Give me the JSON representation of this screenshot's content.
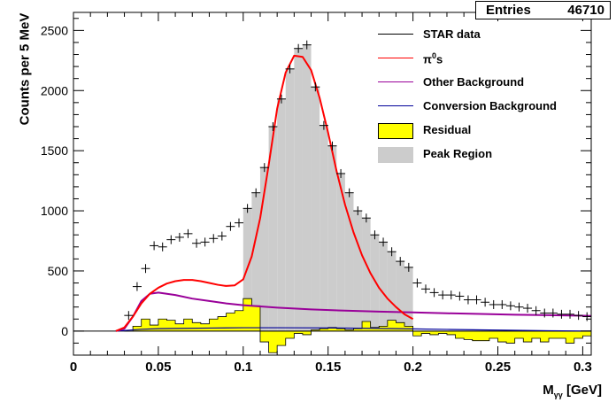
{
  "stats_box": {
    "label": "Entries",
    "value": "46710"
  },
  "axes": {
    "y_title": "Counts per 5 MeV",
    "x_title_main": "M",
    "x_title_sub": "γγ",
    "x_title_unit": " [GeV]",
    "x_ticks": [
      "0",
      "0.05",
      "0.1",
      "0.15",
      "0.2",
      "0.25",
      "0.3"
    ],
    "y_ticks": [
      "0",
      "500",
      "1000",
      "1500",
      "2000",
      "2500"
    ]
  },
  "legend": {
    "star_data": "STAR data",
    "pi0_main": "π",
    "pi0_sup": "0",
    "pi0_tail": "s",
    "other_bg": "Other Background",
    "conv_bg": "Conversion Background",
    "residual": "Residual",
    "peak_region": "Peak Region"
  },
  "colors": {
    "star_data": "#000000",
    "pi0": "#ff0000",
    "other_bg": "#990099",
    "conv_bg": "#000099",
    "residual": "#ffff00",
    "peak_region": "#cccccc"
  },
  "chart_data": {
    "type": "histogram",
    "xlim": [
      0,
      0.305
    ],
    "ylim": [
      -200,
      2650
    ],
    "bin_width": 0.005,
    "star_data": {
      "x": [
        0.0325,
        0.0375,
        0.0425,
        0.0475,
        0.0525,
        0.0575,
        0.0625,
        0.0675,
        0.0725,
        0.0775,
        0.0825,
        0.0875,
        0.0925,
        0.0975,
        0.1025,
        0.1075,
        0.1125,
        0.1175,
        0.1225,
        0.1275,
        0.1325,
        0.1375,
        0.1425,
        0.1475,
        0.1525,
        0.1575,
        0.1625,
        0.1675,
        0.1725,
        0.1775,
        0.1825,
        0.1875,
        0.1925,
        0.1975,
        0.2025,
        0.2075,
        0.2125,
        0.2175,
        0.2225,
        0.2275,
        0.2325,
        0.2375,
        0.2425,
        0.2475,
        0.2525,
        0.2575,
        0.2625,
        0.2675,
        0.2725,
        0.2775,
        0.2825,
        0.2875,
        0.2925,
        0.2975,
        0.3025
      ],
      "y": [
        130,
        370,
        520,
        710,
        700,
        760,
        780,
        810,
        730,
        740,
        770,
        790,
        870,
        900,
        1020,
        1150,
        1360,
        1700,
        1930,
        2180,
        2350,
        2380,
        2030,
        1710,
        1540,
        1310,
        1150,
        1000,
        940,
        800,
        740,
        660,
        580,
        530,
        400,
        350,
        320,
        300,
        300,
        290,
        260,
        260,
        240,
        220,
        220,
        210,
        200,
        190,
        170,
        150,
        150,
        140,
        140,
        130,
        120
      ]
    },
    "peak_region": {
      "x_range": [
        0.1,
        0.2
      ],
      "y": [
        1020,
        1150,
        1360,
        1700,
        1930,
        2180,
        2350,
        2380,
        2030,
        1710,
        1540,
        1310,
        1150,
        1000,
        940,
        800,
        740,
        660,
        580,
        530
      ]
    },
    "residual": {
      "x_start": 0.03,
      "y": [
        0,
        40,
        100,
        50,
        100,
        90,
        60,
        100,
        70,
        60,
        100,
        120,
        150,
        170,
        270,
        210,
        -90,
        -180,
        -120,
        -60,
        -20,
        -30,
        10,
        20,
        30,
        20,
        10,
        20,
        80,
        30,
        40,
        90,
        70,
        40,
        -40,
        -20,
        -30,
        -20,
        -30,
        -60,
        -70,
        -80,
        -80,
        -60,
        -90,
        -100,
        -60,
        -90,
        -60,
        -90,
        -60,
        -60,
        -100,
        -60,
        -40
      ]
    },
    "pi0_curve": {
      "x": [
        0.025,
        0.03,
        0.035,
        0.04,
        0.045,
        0.05,
        0.055,
        0.06,
        0.065,
        0.07,
        0.075,
        0.08,
        0.085,
        0.09,
        0.095,
        0.1,
        0.105,
        0.11,
        0.115,
        0.12,
        0.125,
        0.13,
        0.135,
        0.14,
        0.145,
        0.15,
        0.155,
        0.16,
        0.165,
        0.17,
        0.175,
        0.18,
        0.185,
        0.19,
        0.195,
        0.2
      ],
      "y": [
        0,
        30,
        120,
        230,
        310,
        360,
        395,
        415,
        425,
        425,
        415,
        400,
        385,
        375,
        380,
        430,
        620,
        940,
        1380,
        1850,
        2150,
        2290,
        2280,
        2170,
        1940,
        1650,
        1330,
        1050,
        820,
        630,
        480,
        360,
        270,
        200,
        140,
        100
      ]
    },
    "other_background": {
      "x": [
        0.025,
        0.03,
        0.035,
        0.04,
        0.045,
        0.05,
        0.06,
        0.07,
        0.08,
        0.09,
        0.1,
        0.12,
        0.14,
        0.16,
        0.18,
        0.2,
        0.22,
        0.24,
        0.26,
        0.28,
        0.3,
        0.305
      ],
      "y": [
        0,
        20,
        120,
        250,
        310,
        320,
        300,
        270,
        250,
        230,
        215,
        195,
        180,
        170,
        162,
        155,
        148,
        142,
        136,
        132,
        128,
        126
      ]
    },
    "conversion_background": {
      "x": [
        0.025,
        0.03,
        0.04,
        0.05,
        0.06,
        0.08,
        0.1,
        0.12,
        0.14,
        0.16,
        0.18,
        0.2,
        0.22,
        0.24,
        0.26,
        0.28,
        0.3,
        0.305
      ],
      "y": [
        0,
        5,
        15,
        20,
        22,
        25,
        28,
        28,
        27,
        25,
        22,
        18,
        14,
        10,
        6,
        3,
        0,
        0
      ]
    }
  }
}
